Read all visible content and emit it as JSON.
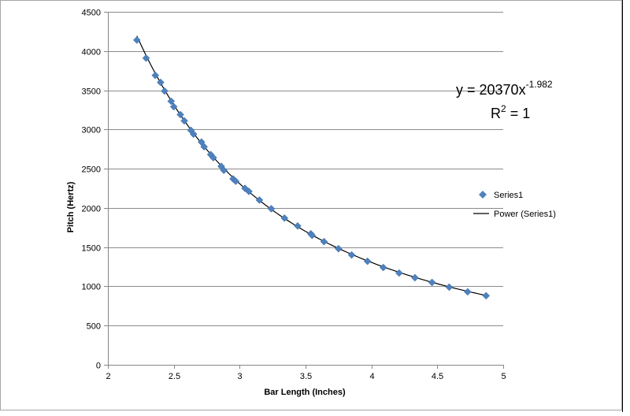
{
  "chart_data": {
    "type": "scatter",
    "title": "",
    "xlabel": "Bar Length (Inches)",
    "ylabel": "Pitch (Hertz)",
    "xlim": [
      2,
      5
    ],
    "ylim": [
      0,
      4500
    ],
    "x_ticks": [
      "2",
      "2.5",
      "3",
      "3.5",
      "4",
      "4.5",
      "5"
    ],
    "y_ticks": [
      "0",
      "500",
      "1000",
      "1500",
      "2000",
      "2500",
      "3000",
      "3500",
      "4000",
      "4500"
    ],
    "grid": "horizontal",
    "legend_position": "right",
    "marker_color": "#4f81bd",
    "trendline_color": "#000000",
    "series": [
      {
        "name": "Series1",
        "marker": "diamond",
        "points": [
          [
            2.22,
            4140
          ],
          [
            2.29,
            3910
          ],
          [
            2.36,
            3690
          ],
          [
            2.4,
            3600
          ],
          [
            2.43,
            3490
          ],
          [
            2.48,
            3360
          ],
          [
            2.5,
            3290
          ],
          [
            2.55,
            3190
          ],
          [
            2.58,
            3110
          ],
          [
            2.63,
            2990
          ],
          [
            2.65,
            2940
          ],
          [
            2.71,
            2840
          ],
          [
            2.73,
            2780
          ],
          [
            2.78,
            2680
          ],
          [
            2.8,
            2640
          ],
          [
            2.86,
            2530
          ],
          [
            2.88,
            2480
          ],
          [
            2.95,
            2370
          ],
          [
            2.97,
            2340
          ],
          [
            3.04,
            2250
          ],
          [
            3.07,
            2210
          ],
          [
            3.15,
            2100
          ],
          [
            3.24,
            1990
          ],
          [
            3.34,
            1870
          ],
          [
            3.44,
            1770
          ],
          [
            3.54,
            1670
          ],
          [
            3.55,
            1650
          ],
          [
            3.64,
            1570
          ],
          [
            3.75,
            1480
          ],
          [
            3.85,
            1400
          ],
          [
            3.97,
            1320
          ],
          [
            4.09,
            1240
          ],
          [
            4.21,
            1170
          ],
          [
            4.33,
            1110
          ],
          [
            4.46,
            1050
          ],
          [
            4.59,
            990
          ],
          [
            4.73,
            930
          ],
          [
            4.87,
            880
          ]
        ]
      }
    ],
    "trendline": {
      "name": "Power (Series1)",
      "type": "power",
      "coefficient": 20370,
      "exponent": -1.982,
      "x_range": [
        2.22,
        4.87
      ]
    },
    "annotations": {
      "equation_prefix": "y = 20370x",
      "equation_exponent": "-1.982",
      "r2_prefix": "R",
      "r2_superscript": "2",
      "r2_suffix": " = 1"
    }
  }
}
